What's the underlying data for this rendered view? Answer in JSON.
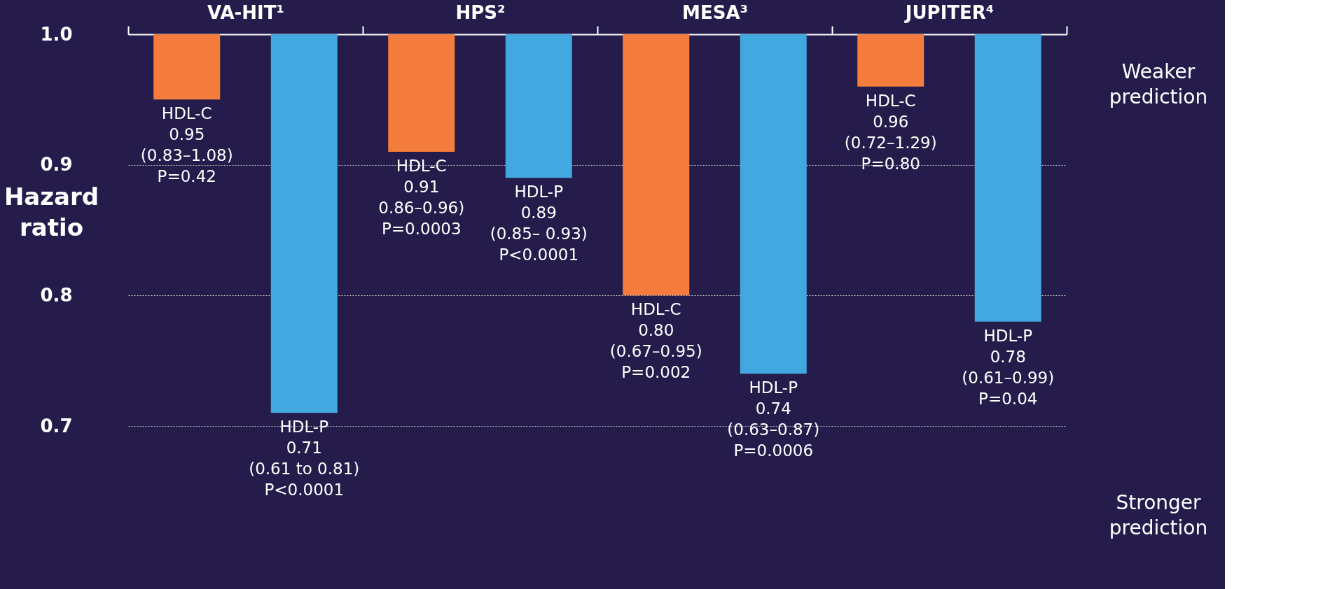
{
  "chart_data": {
    "type": "bar",
    "ylabel": "Hazard ratio",
    "categories": [
      "VA-HIT¹",
      "HPS²",
      "MESA³",
      "JUPITER⁴"
    ],
    "series": [
      {
        "name": "HDL-C",
        "color": "#f47c3c",
        "base": [
          1.0,
          1.0,
          1.0,
          1.0
        ],
        "values": [
          -0.05,
          -0.09,
          -0.2,
          -0.04
        ]
      },
      {
        "name": "HDL-P",
        "color": "#42a8e0",
        "base": [
          1.0,
          1.0,
          1.0,
          1.0
        ],
        "values": [
          -0.29,
          -0.11,
          -0.26,
          -0.22
        ]
      }
    ],
    "ylim": [
      0.7,
      1.0
    ],
    "yticks": [
      {
        "value": 0.7,
        "label": "0.7"
      },
      {
        "value": 0.8,
        "label": "0.8"
      },
      {
        "value": 0.9,
        "label": "0.9"
      },
      {
        "value": 1.0,
        "label": "1.0"
      }
    ],
    "grid": "y",
    "annotations": [
      "0.95\n(0.83–1.08)\nP=0.42",
      "0.71\n(0.61 to 0.81)\nP<0.0001",
      "0.91\n0.86–0.96)\nP=0.0003",
      "0.89\n(0.85– 0.93)\nP<0.0001",
      "0.80\n(0.67–0.95)\nP=0.002",
      "0.74\n(0.63–0.87)\nP=0.0006",
      "0.96\n(0.72–1.29)\nP=0.80",
      "0.78\n(0.61–0.99)\nP=0.04",
      "Weaker prediction",
      "Stronger prediction"
    ]
  }
}
